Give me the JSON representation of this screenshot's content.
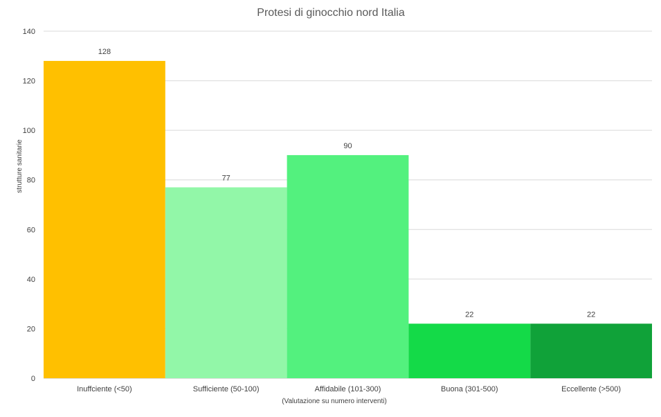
{
  "chart_data": {
    "type": "bar",
    "title": "Protesi di ginocchio nord Italia",
    "xlabel": "(Valutazione su numero interventi)",
    "ylabel": "strutture sanitarie",
    "categories": [
      "Inuffciente (<50)",
      "Sufficiente (50-100)",
      "Affidabile (101-300)",
      "Buona (301-500)",
      "Eccellente (>500)"
    ],
    "values": [
      128,
      77,
      90,
      22,
      22
    ],
    "colors": [
      "#FFC000",
      "#92F7A8",
      "#53F17E",
      "#14DA48",
      "#10A239"
    ],
    "ylim": [
      0,
      140
    ],
    "yticks": [
      0,
      20,
      40,
      60,
      80,
      100,
      120,
      140
    ],
    "grid": true,
    "legend": "none"
  }
}
